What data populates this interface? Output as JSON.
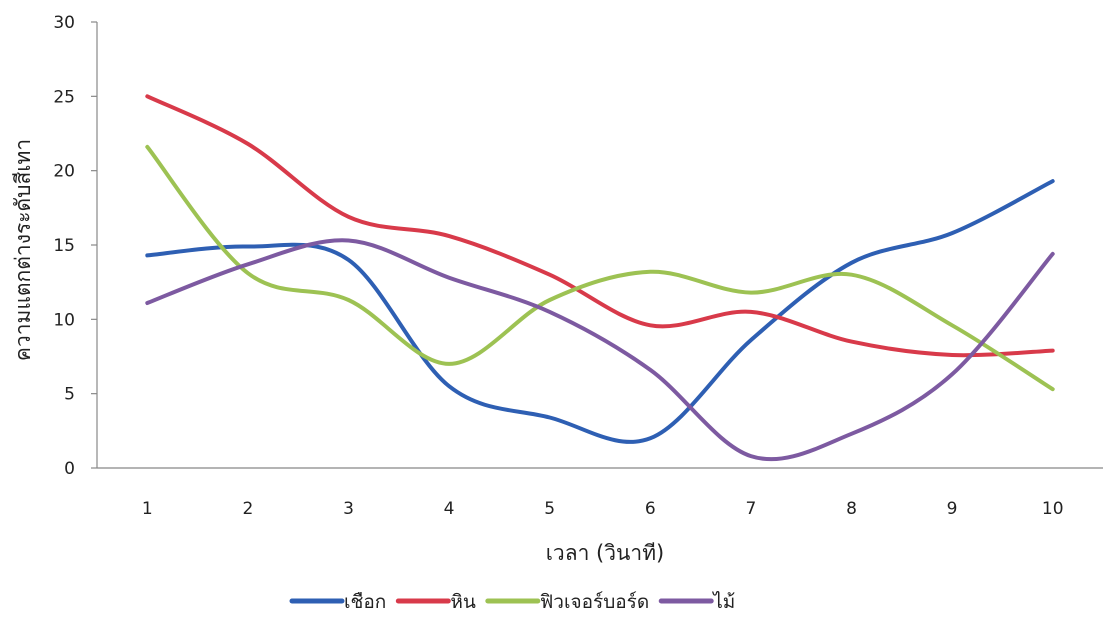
{
  "chart_data": {
    "type": "line",
    "title": "",
    "xlabel": "เวลา (วินาที)",
    "ylabel": "ความแตกต่างระดับสีเทา",
    "x": [
      1,
      2,
      3,
      4,
      5,
      6,
      7,
      8,
      9,
      10
    ],
    "xlim": [
      0.5,
      10.5
    ],
    "ylim": [
      0,
      30
    ],
    "yticks": [
      0,
      5,
      10,
      15,
      20,
      25,
      30
    ],
    "grid": false,
    "smooth": true,
    "legend_position": "bottom",
    "series": [
      {
        "name": "เชือก",
        "color": "#2e5fb3",
        "values": [
          14.3,
          14.9,
          14.0,
          5.5,
          3.4,
          2.0,
          8.6,
          13.8,
          15.8,
          19.3
        ]
      },
      {
        "name": "หิน",
        "color": "#d83a4a",
        "values": [
          25.0,
          21.8,
          16.9,
          15.6,
          13.0,
          9.6,
          10.5,
          8.5,
          7.6,
          7.9
        ]
      },
      {
        "name": "ฟิวเจอร์บอร์ด",
        "color": "#9dc253",
        "values": [
          21.6,
          13.1,
          11.3,
          7.0,
          11.3,
          13.2,
          11.8,
          13.0,
          9.6,
          5.3
        ]
      },
      {
        "name": "ไม้",
        "color": "#7d5aa1",
        "values": [
          11.1,
          13.7,
          15.3,
          12.8,
          10.5,
          6.6,
          0.8,
          2.3,
          6.3,
          14.4
        ]
      }
    ]
  }
}
